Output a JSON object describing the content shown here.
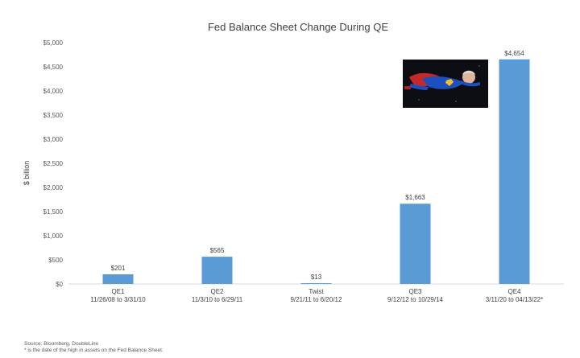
{
  "chart_data": {
    "type": "bar",
    "title": "Fed Balance Sheet Change During QE",
    "ylabel": "$ billion",
    "xlabel": "",
    "ylim": [
      0,
      5000
    ],
    "yticks": [
      0,
      500,
      1000,
      1500,
      2000,
      2500,
      3000,
      3500,
      4000,
      4500,
      5000
    ],
    "ytick_labels": [
      "$0",
      "$500",
      "$1,000",
      "$1,500",
      "$2,000",
      "$2,500",
      "$3,000",
      "$3,500",
      "$4,000",
      "$4,500",
      "$5,000"
    ],
    "grid": false,
    "categories": [
      "QE1",
      "QE2",
      "Twist",
      "QE3",
      "QE4"
    ],
    "category_dates": [
      "11/26/08 to 3/31/10",
      "11/3/10 to 6/29/11",
      "9/21/11 to 6/20/12",
      "9/12/12 to 10/29/14",
      "3/11/20 to 04/13/22*"
    ],
    "values": [
      201,
      565,
      13,
      1663,
      4654
    ],
    "data_labels": [
      "$201",
      "$565",
      "$13",
      "$1,663",
      "$4,654"
    ],
    "bar_color": "#5b9bd5"
  },
  "source": {
    "line1": "Source: Bloomberg, DoubleLine",
    "line2": "* is the date of the high in assets on the Fed Balance Sheet."
  }
}
